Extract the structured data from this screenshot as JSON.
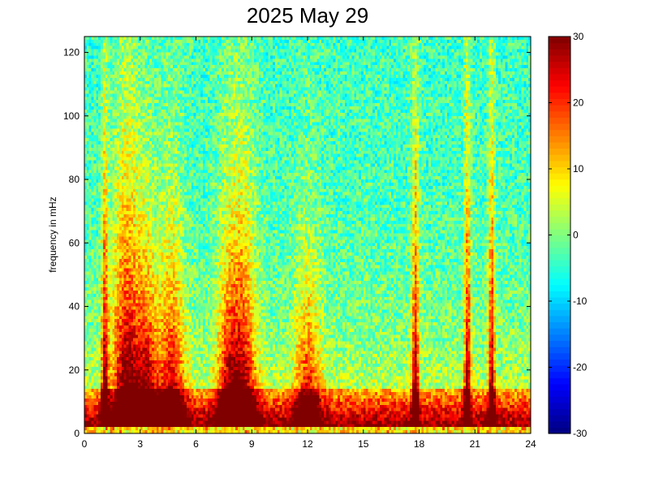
{
  "chart_data": {
    "type": "heatmap",
    "title": "2025 May 29",
    "xlabel": "",
    "ylabel": "frequency in mHz",
    "xlim": [
      0,
      24
    ],
    "ylim": [
      0,
      125
    ],
    "xticks": [
      0,
      3,
      6,
      9,
      12,
      15,
      18,
      21,
      24
    ],
    "yticks": [
      0,
      20,
      40,
      60,
      80,
      100,
      120
    ],
    "colorbar": {
      "range": [
        -30,
        30
      ],
      "ticks": [
        30,
        20,
        10,
        0,
        -10,
        -20,
        -30
      ],
      "colormap": "jet"
    },
    "grid": false,
    "description_of_values": "power in dB; high (~30) below ~20 mHz especially around hours 1-5, 7-9, 11-13, 18 and 20.5-22; vertical bright streaks near hours 1.1, 2.2, 17.8, 20.6, 22; background ~-5 to 0 above 60 mHz",
    "bursts": [
      {
        "center_hour": 1.1,
        "peak_db": 30,
        "height_mhz": 120
      },
      {
        "center_hour": 2.2,
        "peak_db": 30,
        "height_mhz": 110
      },
      {
        "center_hour": 3.3,
        "peak_db": 30,
        "height_mhz": 70
      },
      {
        "center_hour": 4.7,
        "peak_db": 25,
        "height_mhz": 80
      },
      {
        "center_hour": 7.8,
        "peak_db": 25,
        "height_mhz": 75
      },
      {
        "center_hour": 8.6,
        "peak_db": 22,
        "height_mhz": 95
      },
      {
        "center_hour": 12.0,
        "peak_db": 22,
        "height_mhz": 60
      },
      {
        "center_hour": 17.8,
        "peak_db": 30,
        "height_mhz": 125
      },
      {
        "center_hour": 20.6,
        "peak_db": 30,
        "height_mhz": 125
      },
      {
        "center_hour": 21.9,
        "peak_db": 30,
        "height_mhz": 125
      }
    ]
  }
}
